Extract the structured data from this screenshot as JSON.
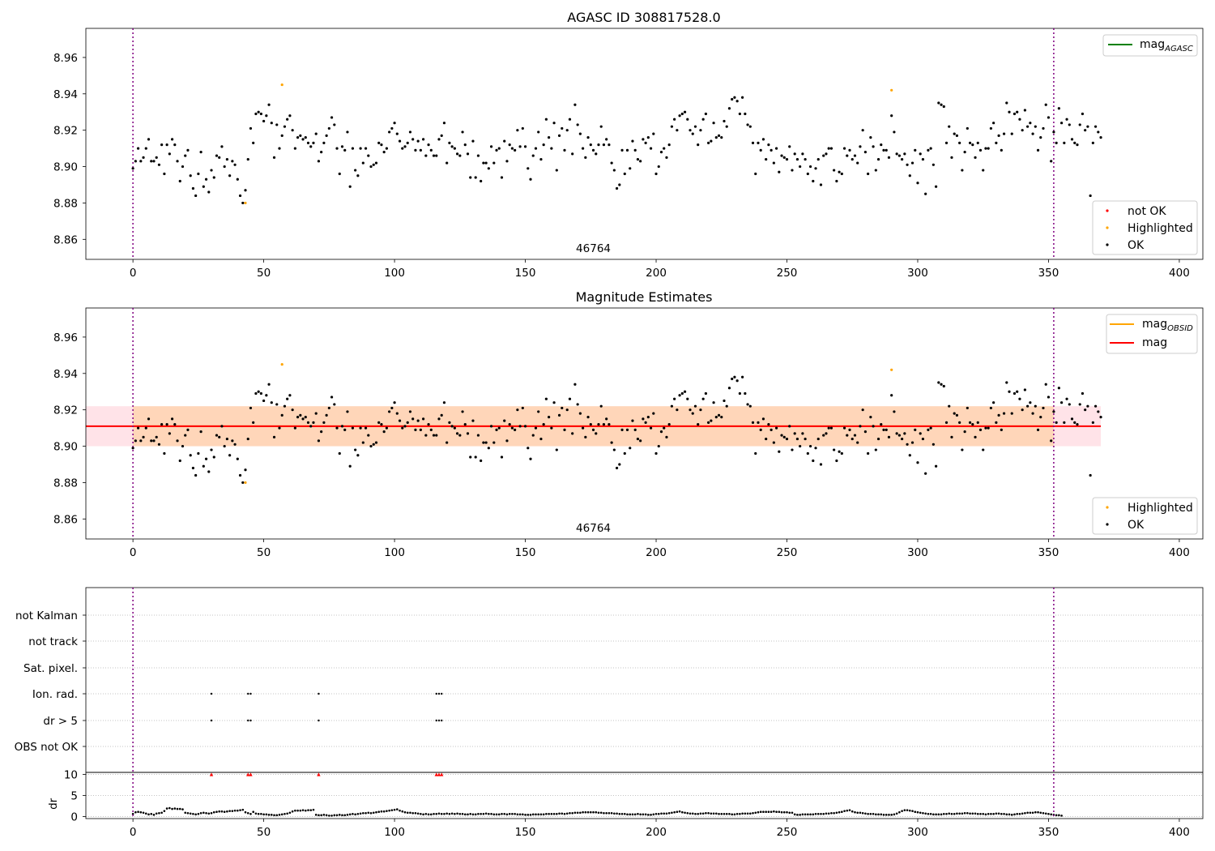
{
  "chart_data": [
    {
      "type": "scatter",
      "title": "AGASC ID 308817528.0",
      "xlim": [
        -18,
        409
      ],
      "ylim": [
        8.849,
        8.976
      ],
      "xticks": [
        0,
        50,
        100,
        150,
        200,
        250,
        300,
        350,
        400
      ],
      "yticks": [
        8.86,
        8.88,
        8.9,
        8.92,
        8.94,
        8.96
      ],
      "vlines": [
        0,
        352
      ],
      "obsid_label": {
        "text": "46764",
        "x": 176,
        "y": 8.853
      },
      "legend_lines": [
        {
          "label": "mag",
          "sub": "AGASC",
          "color": "#008000"
        }
      ],
      "legend_markers": [
        {
          "label": "not OK",
          "color": "#ff0000"
        },
        {
          "label": "Highlighted",
          "color": "#ffa500"
        },
        {
          "label": "OK",
          "color": "#000000"
        }
      ],
      "highlighted": {
        "x": [
          43,
          57,
          290
        ],
        "y": [
          8.88,
          8.945,
          8.942
        ]
      },
      "series": [
        {
          "name": "OK",
          "color": "#000000",
          "y": [
            8.899,
            8.903,
            8.91,
            8.903,
            8.905,
            8.91,
            8.915,
            8.903,
            8.903,
            8.905,
            8.901,
            8.912,
            8.896,
            8.912,
            8.907,
            8.915,
            8.912,
            8.903,
            8.892,
            8.9,
            8.906,
            8.909,
            8.895,
            8.888,
            8.884,
            8.896,
            8.908,
            8.889,
            8.893,
            8.886,
            8.898,
            8.894,
            8.906,
            8.905,
            8.911,
            8.9,
            8.904,
            8.895,
            8.903,
            8.901,
            8.893,
            8.884,
            8.88,
            8.887,
            8.904,
            8.921,
            8.913,
            8.929,
            8.93,
            8.929,
            8.925,
            8.928,
            8.934,
            8.924,
            8.905,
            8.923,
            8.91,
            8.917,
            8.922,
            8.926,
            8.928,
            8.92,
            8.91,
            8.916,
            8.917,
            8.915,
            8.916,
            8.913,
            8.911,
            8.913,
            8.918,
            8.903,
            8.908,
            8.913,
            8.917,
            8.921,
            8.927,
            8.923,
            8.91,
            8.896,
            8.911,
            8.909,
            8.919,
            8.889,
            8.91,
            8.898,
            8.895,
            8.91,
            8.902,
            8.91,
            8.906,
            8.9,
            8.901,
            8.902,
            8.913,
            8.912,
            8.908,
            8.91,
            8.919,
            8.921,
            8.924,
            8.918,
            8.914,
            8.91,
            8.911,
            8.913,
            8.919,
            8.915,
            8.909,
            8.914,
            8.909,
            8.915,
            8.906,
            8.912,
            8.909,
            8.906,
            8.906,
            8.915,
            8.917,
            8.924,
            8.902,
            8.913,
            8.911,
            8.91,
            8.907,
            8.906,
            8.919,
            8.912,
            8.907,
            8.894,
            8.914,
            8.894,
            8.906,
            8.892,
            8.902,
            8.902,
            8.899,
            8.911,
            8.902,
            8.909,
            8.91,
            8.894,
            8.914,
            8.903,
            8.912,
            8.91,
            8.909,
            8.92,
            8.911,
            8.921,
            8.911,
            8.899,
            8.893,
            8.906,
            8.91,
            8.919,
            8.904,
            8.912,
            8.926,
            8.916,
            8.91,
            8.924,
            8.898,
            8.917,
            8.921,
            8.909,
            8.92,
            8.926,
            8.907,
            8.934,
            8.923,
            8.918,
            8.91,
            8.905,
            8.916,
            8.912,
            8.909,
            8.907,
            8.912,
            8.922,
            8.912,
            8.915,
            8.912,
            8.902,
            8.898,
            8.888,
            8.89,
            8.909,
            8.896,
            8.909,
            8.899,
            8.914,
            8.909,
            8.904,
            8.903,
            8.915,
            8.913,
            8.916,
            8.91,
            8.918,
            8.896,
            8.9,
            8.908,
            8.91,
            8.905,
            8.912,
            8.922,
            8.926,
            8.92,
            8.928,
            8.929,
            8.93,
            8.926,
            8.92,
            8.918,
            8.922,
            8.912,
            8.92,
            8.926,
            8.929,
            8.913,
            8.914,
            8.924,
            8.916,
            8.917,
            8.916,
            8.925,
            8.922,
            8.932,
            8.937,
            8.938,
            8.936,
            8.929,
            8.938,
            8.929,
            8.923,
            8.922,
            8.913,
            8.896,
            8.913,
            8.909,
            8.915,
            8.904,
            8.912,
            8.909,
            8.902,
            8.91,
            8.897,
            8.906,
            8.905,
            8.904,
            8.911,
            8.898,
            8.907,
            8.904,
            8.9,
            8.907,
            8.904,
            8.896,
            8.9,
            8.892,
            8.899,
            8.904,
            8.89,
            8.906,
            8.907,
            8.91,
            8.91,
            8.898,
            8.892,
            8.897,
            8.896,
            8.91,
            8.906,
            8.909,
            8.904,
            8.906,
            8.902,
            8.911,
            8.92,
            8.908,
            8.896,
            8.916,
            8.911,
            8.898,
            8.904,
            8.912,
            8.909,
            8.909,
            8.905,
            8.928,
            8.919,
            8.907,
            8.906,
            8.904,
            8.907,
            8.901,
            8.895,
            8.902,
            8.909,
            8.891,
            8.907,
            8.904,
            8.885,
            8.909,
            8.91,
            8.901,
            8.889,
            8.935,
            8.934,
            8.933,
            8.913,
            8.922,
            8.905,
            8.918,
            8.917,
            8.913,
            8.898,
            8.908,
            8.921,
            8.913,
            8.912,
            8.905,
            8.913,
            8.909,
            8.898,
            8.91,
            8.91,
            8.921,
            8.924,
            8.913,
            8.917,
            8.909,
            8.918,
            8.935,
            8.93,
            8.918,
            8.929,
            8.93,
            8.926,
            8.92,
            8.931,
            8.922,
            8.924,
            8.918,
            8.922,
            8.909,
            8.916,
            8.921,
            8.934,
            8.927,
            8.903,
            8.919,
            8.913,
            8.932,
            8.924,
            8.913,
            8.926,
            8.923,
            8.915,
            8.913,
            8.912,
            8.923,
            8.929,
            8.92,
            8.922,
            8.884,
            8.913,
            8.922,
            8.919,
            8.916
          ]
        }
      ]
    },
    {
      "type": "scatter",
      "title": "Magnitude Estimates",
      "xlim": [
        -18,
        409
      ],
      "ylim": [
        8.849,
        8.976
      ],
      "xticks": [
        0,
        50,
        100,
        150,
        200,
        250,
        300,
        350,
        400
      ],
      "yticks": [
        8.86,
        8.88,
        8.9,
        8.92,
        8.94,
        8.96
      ],
      "vlines": [
        0,
        352
      ],
      "obsid_label": {
        "text": "46764",
        "x": 176,
        "y": 8.853
      },
      "mag_line": {
        "value": 8.911,
        "x": [
          -18,
          370
        ],
        "band": [
          8.9,
          8.922
        ],
        "color": "#ff0000",
        "band_color": "#ffc0cb"
      },
      "mag_obsid_line": {
        "value": 8.911,
        "x": [
          0,
          352
        ],
        "band": [
          8.9,
          8.922
        ],
        "color": "#ffa500"
      },
      "legend_lines": [
        {
          "label": "mag",
          "sub": "OBSID",
          "color": "#ffa500"
        },
        {
          "label": "mag",
          "sub": "",
          "color": "#ff0000"
        }
      ],
      "legend_markers": [
        {
          "label": "Highlighted",
          "color": "#ffa500"
        },
        {
          "label": "OK",
          "color": "#000000"
        }
      ],
      "reuse_points_from": 0
    },
    {
      "type": "scatter",
      "title": "",
      "xlim": [
        -18,
        409
      ],
      "xticks": [
        0,
        50,
        100,
        150,
        200,
        250,
        300,
        350,
        400
      ],
      "vlines": [
        0,
        352
      ],
      "flag_labels": [
        "not Kalman",
        "not track",
        "Sat. pixel.",
        "Ion. rad.",
        "dr > 5",
        "OBS not OK"
      ],
      "flag_points": {
        "Ion. rad.": [
          30,
          44,
          45,
          71,
          116,
          117,
          118
        ],
        "dr > 5": [
          30,
          44,
          45,
          71,
          116,
          117,
          118
        ]
      },
      "dr_panel": {
        "ylabel": "dr",
        "yticks": [
          0,
          5,
          10
        ],
        "ylim": [
          -0.5,
          10.5
        ],
        "outliers": {
          "x": [
            30,
            44,
            45,
            71,
            116,
            117,
            118
          ],
          "y": [
            10,
            10,
            10,
            10,
            10,
            10,
            10
          ],
          "color": "#ff0000"
        },
        "dr": [
          0.6,
          1.0,
          1.1,
          1.0,
          0.9,
          0.7,
          0.5,
          0.6,
          0.4,
          0.7,
          0.8,
          0.9,
          1.3,
          1.9,
          2.0,
          1.8,
          1.9,
          1.8,
          1.8,
          1.7,
          0.9,
          0.8,
          0.7,
          0.6,
          0.5,
          0.6,
          0.8,
          0.9,
          0.8,
          0.7,
          0.8,
          1.0,
          1.1,
          1.2,
          1.2,
          1.1,
          1.2,
          1.3,
          1.3,
          1.4,
          1.4,
          1.5,
          1.6,
          1.0,
          0.8,
          0.6,
          1.1,
          0.7,
          0.6,
          0.6,
          0.5,
          0.5,
          0.4,
          0.4,
          0.3,
          0.3,
          0.4,
          0.5,
          0.6,
          0.7,
          0.9,
          1.2,
          1.4,
          1.4,
          1.4,
          1.5,
          1.4,
          1.5,
          1.5,
          1.6,
          0.4,
          0.3,
          0.3,
          0.4,
          0.3,
          0.2,
          0.2,
          0.3,
          0.3,
          0.4,
          0.3,
          0.3,
          0.4,
          0.5,
          0.6,
          0.5,
          0.6,
          0.7,
          0.8,
          0.8,
          0.9,
          0.8,
          0.9,
          1.0,
          1.1,
          1.2,
          1.2,
          1.3,
          1.4,
          1.5,
          1.6,
          1.7,
          1.4,
          1.2,
          1.0,
          0.9,
          0.9,
          0.8,
          0.8,
          0.7,
          0.6,
          0.5,
          0.6,
          0.5,
          0.5,
          0.6,
          0.6,
          0.7,
          0.6,
          0.6,
          0.7,
          0.6,
          0.7,
          0.6,
          0.7,
          0.6,
          0.6,
          0.5,
          0.5,
          0.6,
          0.5,
          0.5,
          0.6,
          0.6,
          0.6,
          0.7,
          0.6,
          0.6,
          0.5,
          0.5,
          0.5,
          0.6,
          0.6,
          0.5,
          0.6,
          0.6,
          0.6,
          0.5,
          0.5,
          0.5,
          0.4,
          0.4,
          0.4,
          0.5,
          0.5,
          0.5,
          0.5,
          0.5,
          0.6,
          0.6,
          0.6,
          0.6,
          0.6,
          0.7,
          0.7,
          0.6,
          0.7,
          0.8,
          0.8,
          0.9,
          0.9,
          0.9,
          1.0,
          1.0,
          1.0,
          1.0,
          1.0,
          1.0,
          0.9,
          0.9,
          0.8,
          0.8,
          0.8,
          0.8,
          0.7,
          0.7,
          0.6,
          0.6,
          0.6,
          0.5,
          0.5,
          0.5,
          0.5,
          0.6,
          0.5,
          0.5,
          0.5,
          0.4,
          0.4,
          0.5,
          0.6,
          0.6,
          0.7,
          0.7,
          0.7,
          0.8,
          0.9,
          1.0,
          1.1,
          1.2,
          1.0,
          0.9,
          0.8,
          0.7,
          0.7,
          0.6,
          0.6,
          0.7,
          0.7,
          0.8,
          0.8,
          0.7,
          0.7,
          0.7,
          0.6,
          0.6,
          0.6,
          0.6,
          0.6,
          0.5,
          0.5,
          0.6,
          0.6,
          0.7,
          0.7,
          0.7,
          0.7,
          0.8,
          0.9,
          1.0,
          1.1,
          1.1,
          1.1,
          1.1,
          1.1,
          1.2,
          1.1,
          1.1,
          1.0,
          1.0,
          1.0,
          0.9,
          0.9,
          0.5,
          0.4,
          0.4,
          0.5,
          0.5,
          0.5,
          0.5,
          0.5,
          0.6,
          0.6,
          0.6,
          0.6,
          0.7,
          0.7,
          0.8,
          0.8,
          0.9,
          1.0,
          1.1,
          1.3,
          1.4,
          1.5,
          1.2,
          1.0,
          0.9,
          0.9,
          0.8,
          0.7,
          0.6,
          0.6,
          0.6,
          0.5,
          0.5,
          0.5,
          0.4,
          0.4,
          0.4,
          0.4,
          0.5,
          0.7,
          1.0,
          1.3,
          1.5,
          1.5,
          1.4,
          1.3,
          1.1,
          1.0,
          0.9,
          0.8,
          0.7,
          0.6,
          0.6,
          0.5,
          0.5,
          0.5,
          0.5,
          0.6,
          0.6,
          0.7,
          0.6,
          0.6,
          0.7,
          0.7,
          0.7,
          0.8,
          0.8,
          0.7,
          0.7,
          0.7,
          0.6,
          0.6,
          0.6,
          0.5,
          0.6,
          0.6,
          0.6,
          0.7,
          0.7,
          0.6,
          0.6,
          0.5,
          0.5,
          0.4,
          0.5,
          0.6,
          0.6,
          0.7,
          0.8,
          0.9,
          0.9,
          0.9,
          1.0,
          1.0,
          0.9,
          0.8,
          0.7,
          0.6,
          0.5,
          0.4,
          0.3,
          0.3,
          0.2
        ]
      }
    }
  ]
}
